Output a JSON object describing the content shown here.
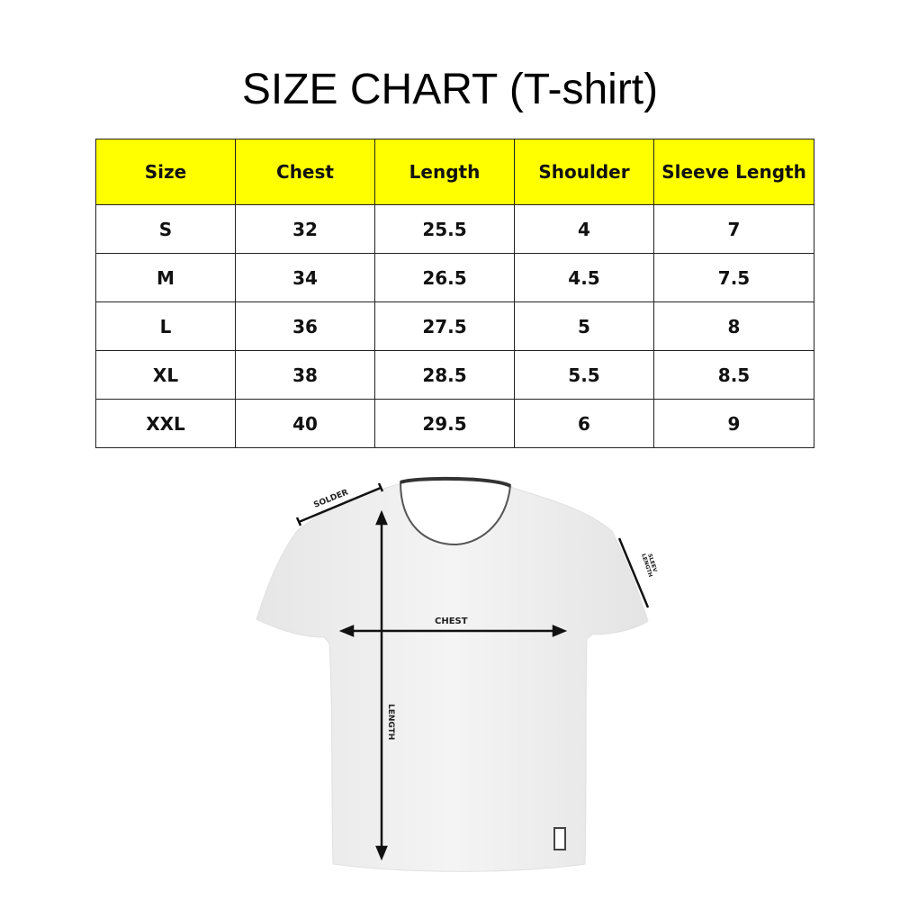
{
  "title": "SIZE CHART (T-shirt)",
  "table": {
    "header_color": "#FFFF00",
    "headers": [
      "Size",
      "Chest",
      "Length",
      "Shoulder",
      "Sleeve Length"
    ],
    "rows": [
      [
        "S",
        "32",
        "25.5",
        "4",
        "7"
      ],
      [
        "M",
        "34",
        "26.5",
        "4.5",
        "7.5"
      ],
      [
        "L",
        "36",
        "27.5",
        "5",
        "8"
      ],
      [
        "XL",
        "38",
        "28.5",
        "5.5",
        "8.5"
      ],
      [
        "XXL",
        "40",
        "29.5",
        "6",
        "9"
      ]
    ]
  },
  "diagram": {
    "shoulder_label": "SOLDER",
    "sleeve_label_1": "SLEEV",
    "sleeve_label_2": "LENGTH",
    "chest_label": "CHEST",
    "length_label": "LENGTH"
  }
}
